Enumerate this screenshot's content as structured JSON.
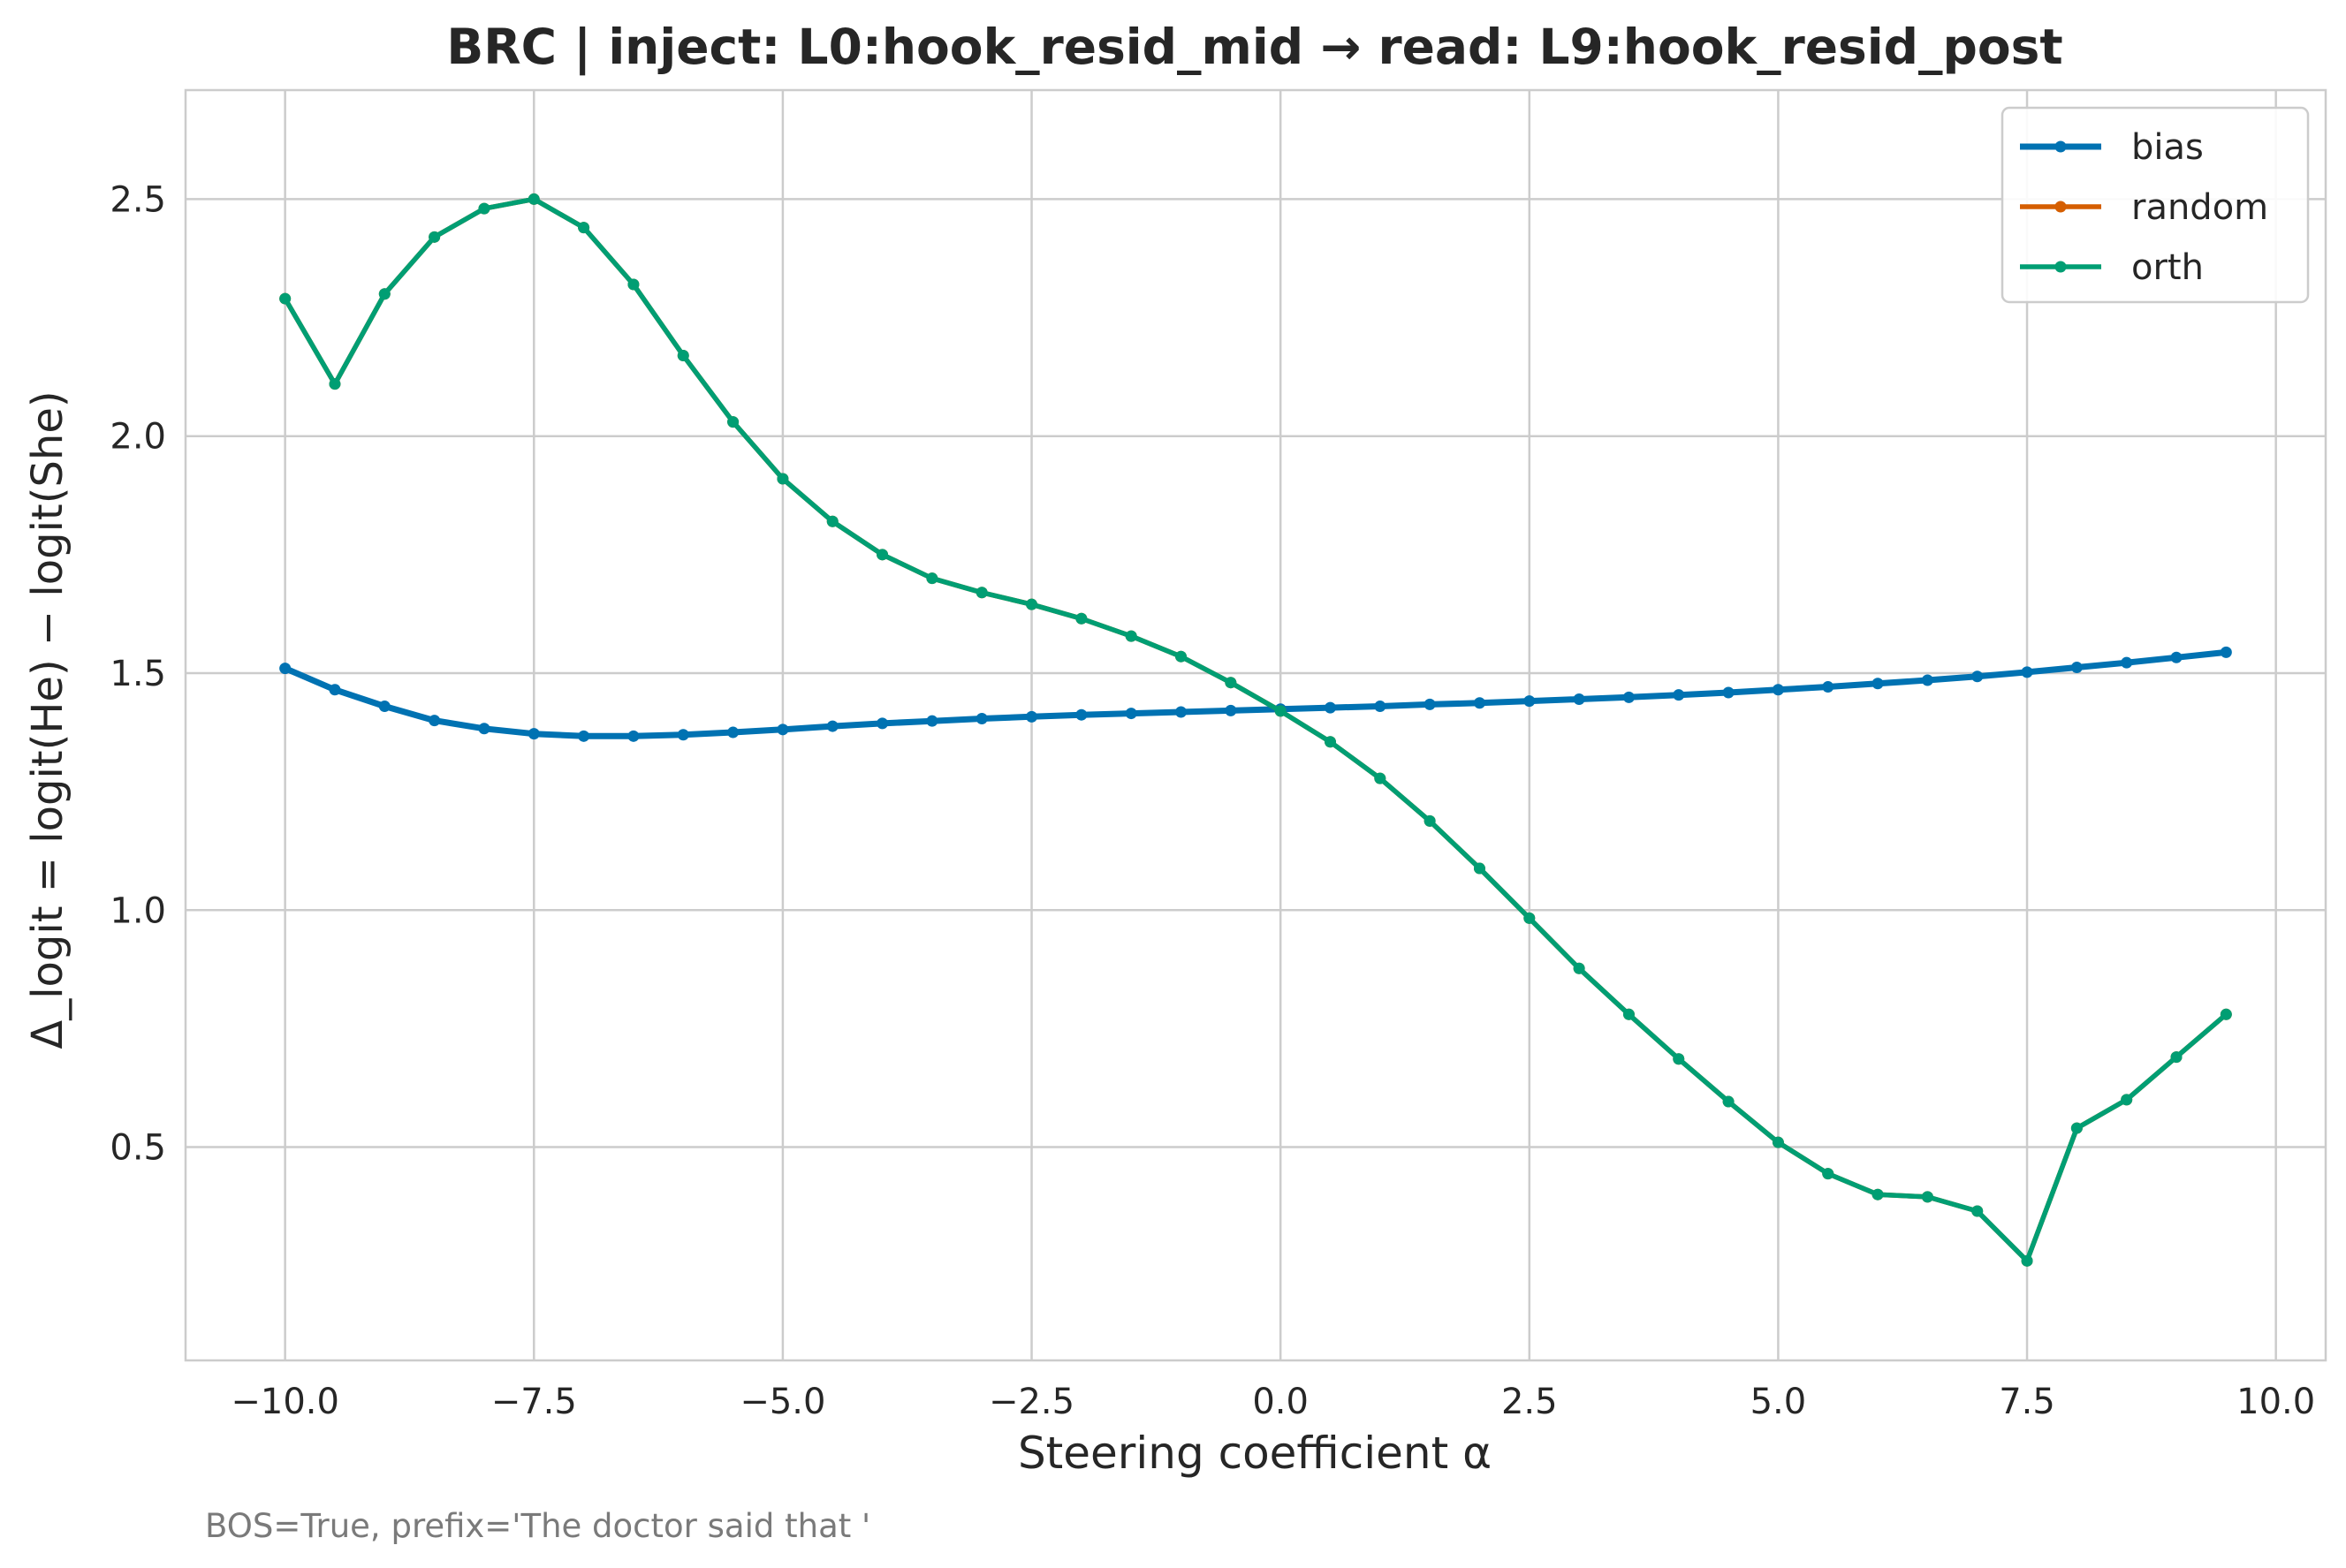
{
  "chart_data": {
    "type": "line",
    "title": "BRC | inject: L0:hook_resid_mid → read: L9:hook_resid_post",
    "xlabel": "Steering coefficient α",
    "ylabel": "Δ_logit = logit(He) − logit(She)",
    "footnote": "BOS=True, prefix='The doctor said that '",
    "xlim": [
      -11,
      10.5
    ],
    "ylim": [
      0.05,
      2.73
    ],
    "xticks": [
      -10.0,
      -7.5,
      -5.0,
      -2.5,
      0.0,
      2.5,
      5.0,
      7.5,
      10.0
    ],
    "xtick_labels": [
      "−10.0",
      "−7.5",
      "−5.0",
      "−2.5",
      "0.0",
      "2.5",
      "5.0",
      "7.5",
      "10.0"
    ],
    "yticks": [
      0.5,
      1.0,
      1.5,
      2.0,
      2.5
    ],
    "ytick_labels": [
      "0.5",
      "1.0",
      "1.5",
      "2.0",
      "2.5"
    ],
    "grid": true,
    "legend_position": "top-right",
    "x": [
      -10.0,
      -9.5,
      -9.0,
      -8.5,
      -8.0,
      -7.5,
      -7.0,
      -6.5,
      -6.0,
      -5.5,
      -5.0,
      -4.5,
      -4.0,
      -3.5,
      -3.0,
      -2.5,
      -2.0,
      -1.5,
      -1.0,
      -0.5,
      0.0,
      0.5,
      1.0,
      1.5,
      2.0,
      2.5,
      3.0,
      3.5,
      4.0,
      4.5,
      5.0,
      5.5,
      6.0,
      6.5,
      7.0,
      7.5,
      8.0,
      8.5,
      9.0,
      9.5
    ],
    "series": [
      {
        "name": "bias",
        "color": "#0072B2",
        "values": [
          1.51,
          1.465,
          1.43,
          1.4,
          1.383,
          1.372,
          1.367,
          1.367,
          1.37,
          1.375,
          1.381,
          1.388,
          1.394,
          1.399,
          1.404,
          1.408,
          1.412,
          1.415,
          1.418,
          1.421,
          1.424,
          1.427,
          1.43,
          1.434,
          1.437,
          1.441,
          1.445,
          1.449,
          1.454,
          1.459,
          1.465,
          1.471,
          1.478,
          1.485,
          1.493,
          1.502,
          1.512,
          1.522,
          1.533,
          1.544
        ]
      },
      {
        "name": "random",
        "color": "#D55E00",
        "values": [
          2.29,
          2.11,
          2.3,
          2.42,
          2.48,
          2.5,
          2.44,
          2.32,
          2.17,
          2.03,
          1.91,
          1.82,
          1.75,
          1.7,
          1.67,
          1.645,
          1.615,
          1.578,
          1.535,
          1.48,
          1.42,
          1.355,
          1.278,
          1.188,
          1.088,
          0.983,
          0.877,
          0.78,
          0.686,
          0.596,
          0.51,
          0.444,
          0.4,
          0.395,
          0.365,
          0.26,
          0.54,
          0.6,
          0.69,
          0.78
        ]
      },
      {
        "name": "orth",
        "color": "#009E73",
        "values": [
          2.29,
          2.11,
          2.3,
          2.42,
          2.48,
          2.5,
          2.44,
          2.32,
          2.17,
          2.03,
          1.91,
          1.82,
          1.75,
          1.7,
          1.67,
          1.645,
          1.615,
          1.578,
          1.535,
          1.48,
          1.42,
          1.355,
          1.278,
          1.188,
          1.088,
          0.983,
          0.877,
          0.78,
          0.686,
          0.596,
          0.51,
          0.444,
          0.4,
          0.395,
          0.365,
          0.26,
          0.54,
          0.6,
          0.69,
          0.78
        ]
      }
    ]
  }
}
